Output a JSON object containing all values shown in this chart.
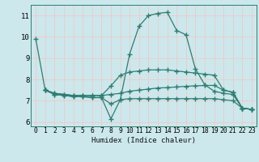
{
  "title": "",
  "xlabel": "Humidex (Indice chaleur)",
  "ylabel": "",
  "xlim": [
    -0.5,
    23.5
  ],
  "ylim": [
    5.8,
    11.5
  ],
  "yticks": [
    6,
    7,
    8,
    9,
    10,
    11
  ],
  "xticks": [
    0,
    1,
    2,
    3,
    4,
    5,
    6,
    7,
    8,
    9,
    10,
    11,
    12,
    13,
    14,
    15,
    16,
    17,
    18,
    19,
    20,
    21,
    22,
    23
  ],
  "bg_color": "#cce8ec",
  "line_color": "#2e7d72",
  "grid_color_major": "#f0c8c8",
  "grid_color_minor": "#e8f4f4",
  "lines": [
    {
      "x": [
        0,
        1,
        2,
        3,
        4,
        5,
        6,
        7,
        8,
        9,
        10,
        11,
        12,
        13,
        14,
        15,
        16,
        17,
        18,
        19,
        20,
        21,
        22,
        23
      ],
      "y": [
        9.9,
        7.5,
        7.3,
        7.25,
        7.2,
        7.2,
        7.15,
        7.15,
        6.15,
        7.05,
        9.2,
        10.5,
        11.0,
        11.1,
        11.15,
        10.3,
        10.1,
        8.5,
        7.75,
        7.45,
        7.35,
        7.3,
        6.65,
        6.6
      ]
    },
    {
      "x": [
        1,
        2,
        3,
        4,
        5,
        6,
        7,
        8,
        9,
        10,
        11,
        12,
        13,
        14,
        15,
        16,
        17,
        18,
        19,
        20,
        21,
        22,
        23
      ],
      "y": [
        7.5,
        7.35,
        7.3,
        7.25,
        7.25,
        7.25,
        7.25,
        7.7,
        8.2,
        8.35,
        8.4,
        8.45,
        8.45,
        8.45,
        8.4,
        8.35,
        8.3,
        8.25,
        8.2,
        7.5,
        7.4,
        6.65,
        6.6
      ]
    },
    {
      "x": [
        1,
        2,
        3,
        4,
        5,
        6,
        7,
        8,
        9,
        10,
        11,
        12,
        13,
        14,
        15,
        16,
        17,
        18,
        19,
        20,
        21,
        22,
        23
      ],
      "y": [
        7.5,
        7.35,
        7.3,
        7.25,
        7.25,
        7.25,
        7.25,
        7.3,
        7.35,
        7.45,
        7.5,
        7.55,
        7.6,
        7.62,
        7.65,
        7.68,
        7.7,
        7.72,
        7.72,
        7.5,
        7.4,
        6.65,
        6.6
      ]
    },
    {
      "x": [
        1,
        2,
        3,
        4,
        5,
        6,
        7,
        8,
        9,
        10,
        11,
        12,
        13,
        14,
        15,
        16,
        17,
        18,
        19,
        20,
        21,
        22,
        23
      ],
      "y": [
        7.5,
        7.3,
        7.25,
        7.2,
        7.2,
        7.15,
        7.15,
        6.85,
        7.05,
        7.1,
        7.1,
        7.1,
        7.1,
        7.1,
        7.1,
        7.1,
        7.1,
        7.1,
        7.1,
        7.05,
        7.0,
        6.65,
        6.6
      ]
    }
  ]
}
